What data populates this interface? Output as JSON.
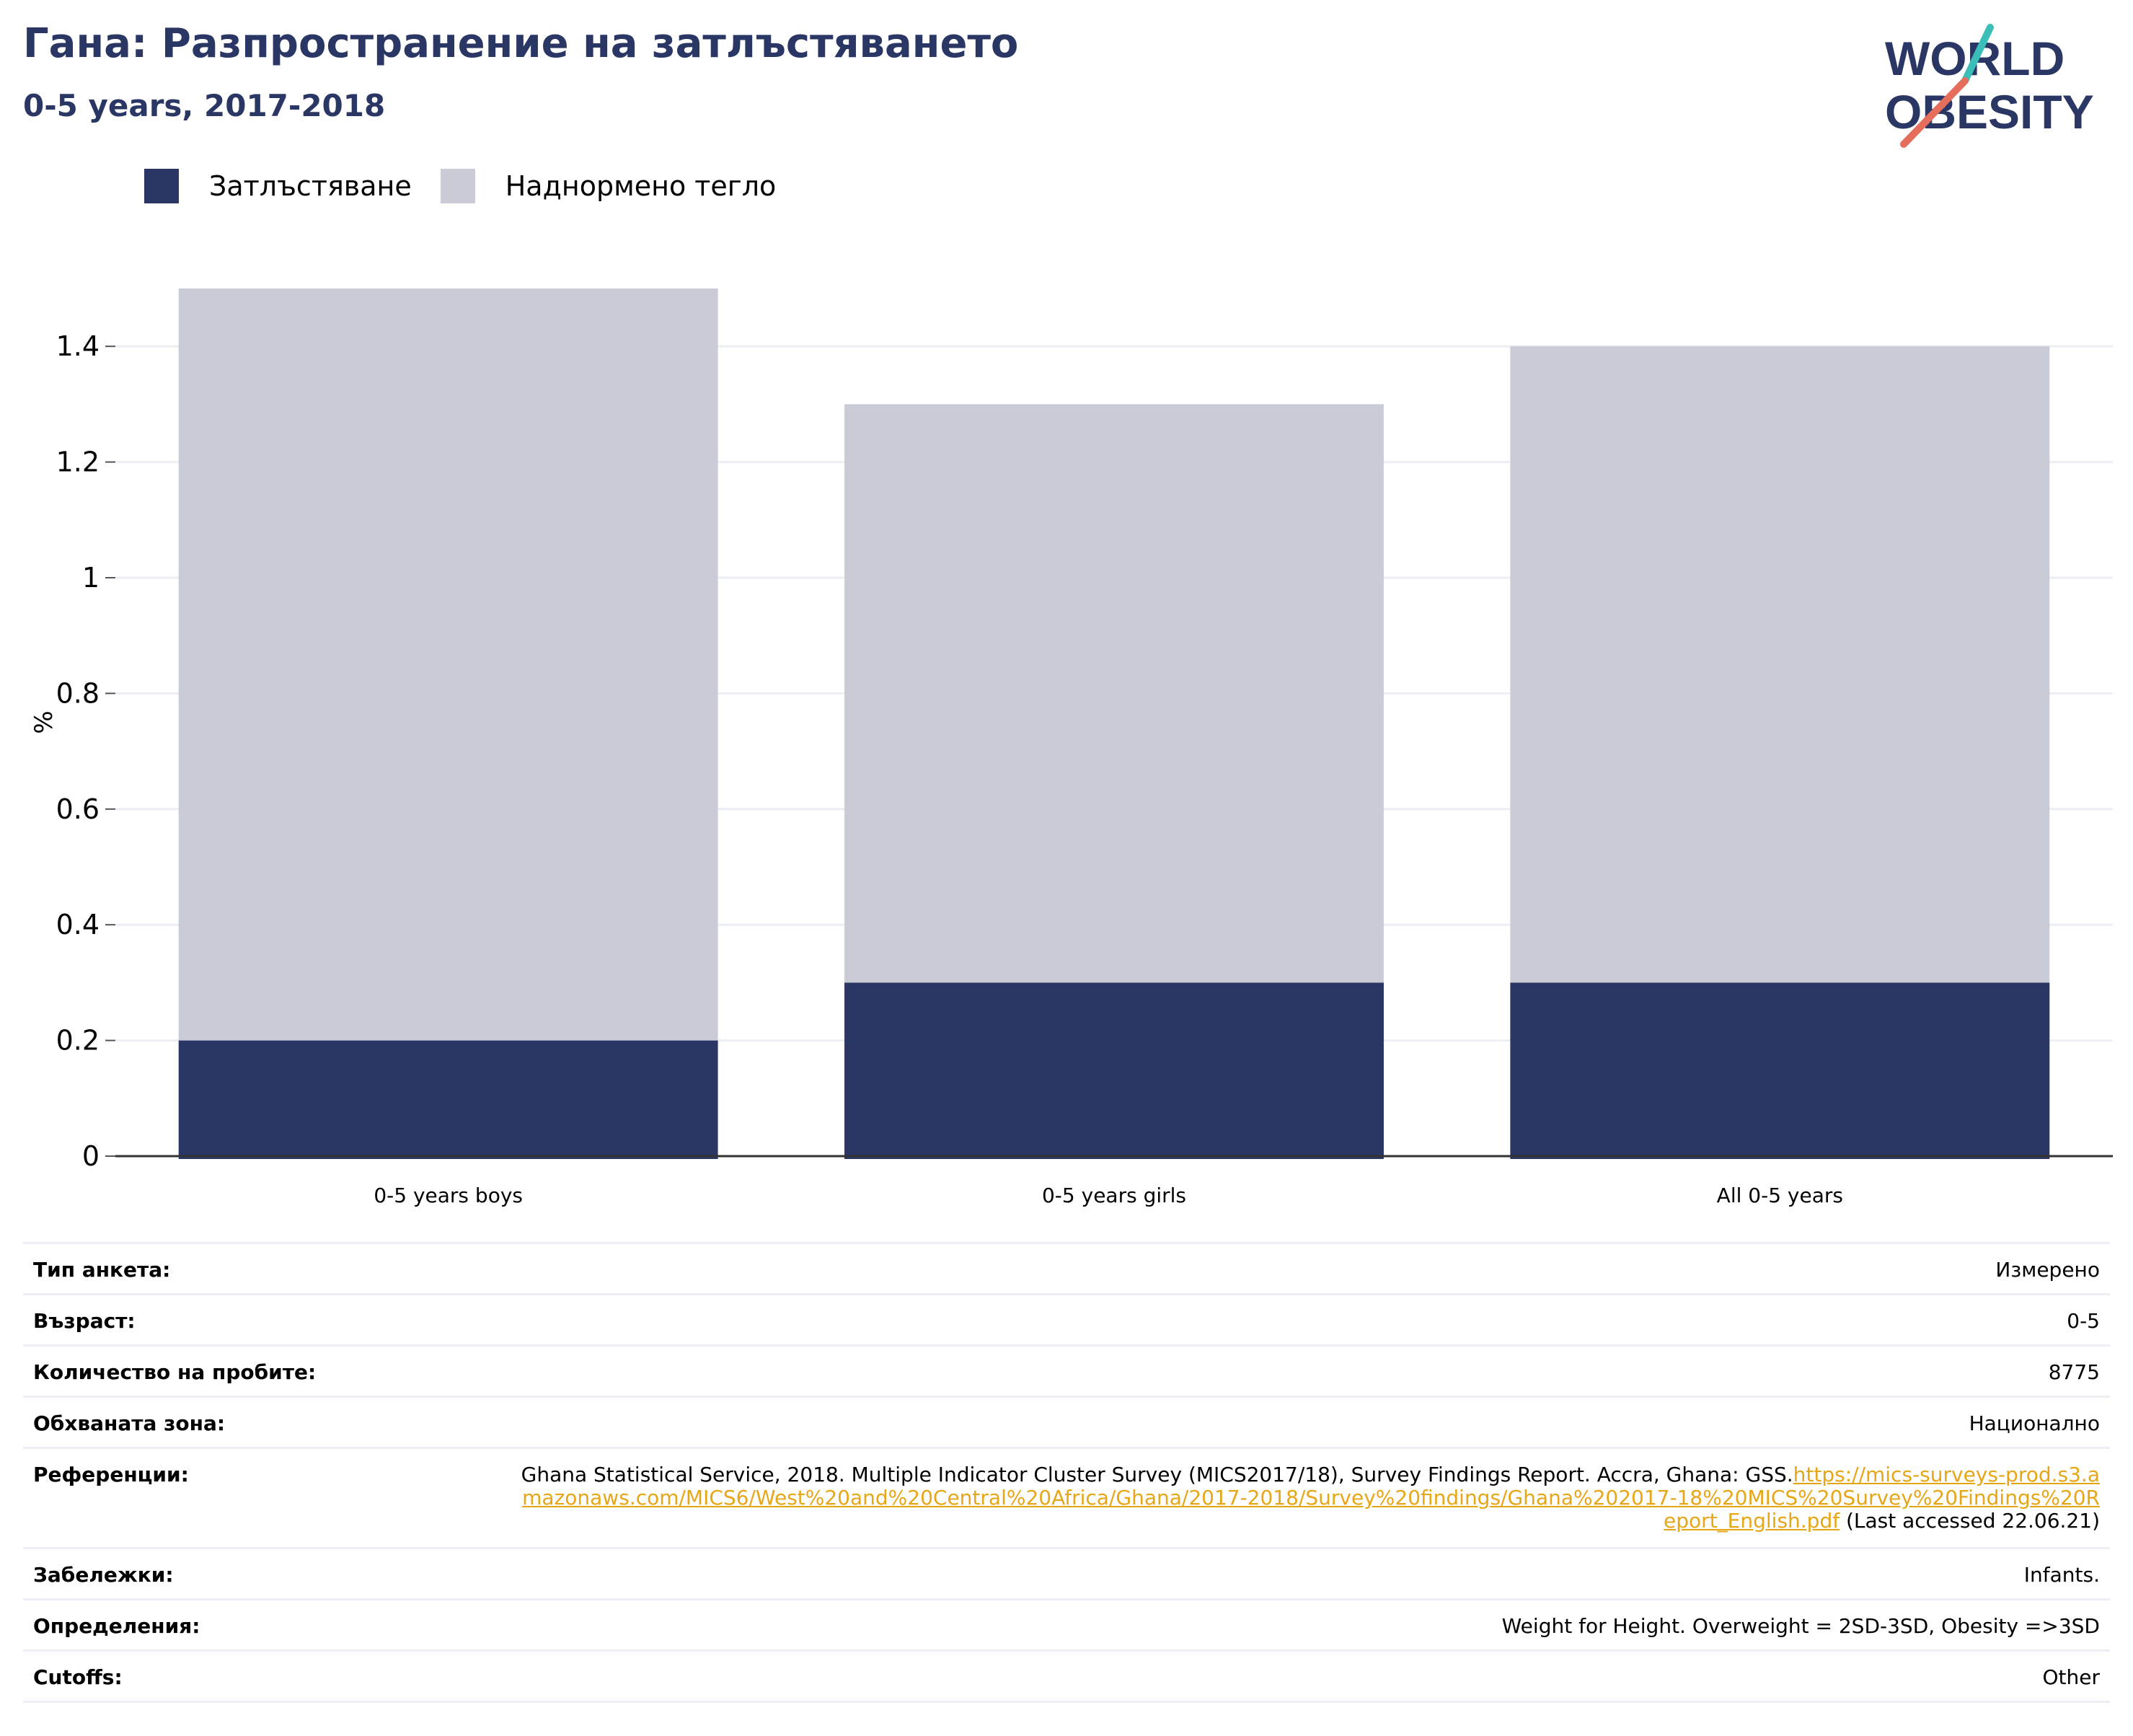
{
  "header": {
    "title": "Гана: Разпространение на затлъстяването",
    "subtitle": "0-5 years, 2017-2018"
  },
  "logo": {
    "text": "WORLD OBESITY",
    "line1": "WORLD",
    "line2": "OBESITY"
  },
  "colors": {
    "obesity": "#2a3664",
    "overweight": "#c9cbd7",
    "title": "#2a3664",
    "link": "#e7a617",
    "logo_teal": "#3bbdb8",
    "logo_coral": "#e46d5c"
  },
  "chart_data": {
    "type": "bar",
    "stacked": true,
    "categories": [
      "0-5 years boys",
      "0-5 years girls",
      "All 0-5 years"
    ],
    "series": [
      {
        "name": "Затлъстяване",
        "values": [
          0.2,
          0.3,
          0.3
        ],
        "color": "#2a3664"
      },
      {
        "name": "Наднормено тегло",
        "values": [
          1.3,
          1.0,
          1.1
        ],
        "color": "#c9cbd7"
      }
    ],
    "ylabel": "%",
    "ylim": [
      0,
      1.5
    ],
    "yticks": [
      0,
      0.2,
      0.4,
      0.6,
      0.8,
      1,
      1.2,
      1.4
    ],
    "ytick_labels": [
      "0",
      "0.2",
      "0.4",
      "0.6",
      "0.8",
      "1",
      "1.2",
      "1.4"
    ],
    "grid": true,
    "legend_position": "top-left"
  },
  "metadata": [
    {
      "label": "Тип анкета:",
      "value": "Измерено"
    },
    {
      "label": "Възраст:",
      "value": "0-5"
    },
    {
      "label": "Количество на пробите:",
      "value": "8775"
    },
    {
      "label": "Обхваната зона:",
      "value": "Национално"
    },
    {
      "label": "Референции:",
      "value": "Ghana Statistical Service, 2018. Multiple Indicator Cluster Survey (MICS2017/18), Survey Findings Report. Accra, Ghana: GSS.",
      "link": "https://mics-surveys-prod.s3.amazonaws.com/MICS6/West%20and%20Central%20Africa/Ghana/2017-2018/Survey%20findings/Ghana%202017-18%20MICS%20Survey%20Findings%20Report_English.pdf",
      "suffix": " (Last accessed 22.06.21)"
    },
    {
      "label": "Забележки:",
      "value": "Infants."
    },
    {
      "label": "Определения:",
      "value": "Weight for Height. Overweight = 2SD-3SD, Obesity =>3SD"
    },
    {
      "label": "Cutoffs:",
      "value": "Other"
    }
  ]
}
